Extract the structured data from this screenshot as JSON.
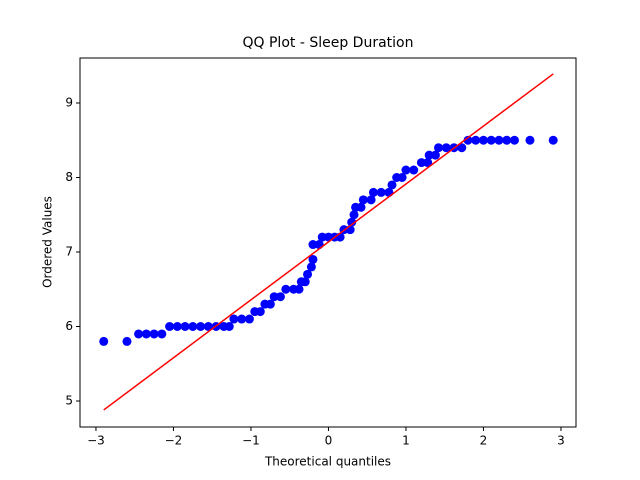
{
  "chart_data": {
    "type": "scatter",
    "title": "QQ Plot - Sleep Duration",
    "x_label": "Theoretical quantiles",
    "y_label": "Ordered Values",
    "xlim": [
      -3.206,
      3.194
    ],
    "ylim": [
      4.651,
      9.604
    ],
    "xticks": [
      {
        "value": -3,
        "label": "−3"
      },
      {
        "value": -2,
        "label": "−2"
      },
      {
        "value": -1,
        "label": "−1"
      },
      0,
      1,
      2,
      3
    ],
    "yticks": [
      5,
      6,
      7,
      8,
      9
    ],
    "grid": false,
    "series": [
      {
        "type": "scatter",
        "color": "#0000ff",
        "x": [
          -2.9,
          -2.6,
          -2.45,
          -2.35,
          -2.25,
          -2.15,
          -2.05,
          -1.95,
          -1.85,
          -1.75,
          -1.65,
          -1.55,
          -1.45,
          -1.35,
          -1.28,
          -1.22,
          -1.12,
          -1.02,
          -0.95,
          -0.88,
          -0.82,
          -0.75,
          -0.7,
          -0.62,
          -0.55,
          -0.45,
          -0.38,
          -0.35,
          -0.3,
          -0.27,
          -0.22,
          -0.2,
          -0.2,
          -0.12,
          -0.08,
          0.0,
          0.08,
          0.15,
          0.2,
          0.28,
          0.3,
          0.33,
          0.35,
          0.42,
          0.45,
          0.55,
          0.58,
          0.68,
          0.78,
          0.82,
          0.88,
          0.95,
          1.0,
          1.1,
          1.2,
          1.28,
          1.3,
          1.38,
          1.42,
          1.52,
          1.62,
          1.72,
          1.8,
          1.9,
          2.0,
          2.1,
          2.2,
          2.3,
          2.4,
          2.6,
          2.9
        ],
        "values": [
          5.8,
          5.8,
          5.9,
          5.9,
          5.9,
          5.9,
          6.0,
          6.0,
          6.0,
          6.0,
          6.0,
          6.0,
          6.0,
          6.0,
          6.0,
          6.1,
          6.1,
          6.1,
          6.2,
          6.2,
          6.3,
          6.3,
          6.4,
          6.4,
          6.5,
          6.5,
          6.5,
          6.6,
          6.6,
          6.7,
          6.8,
          6.9,
          7.1,
          7.1,
          7.2,
          7.2,
          7.2,
          7.2,
          7.3,
          7.3,
          7.4,
          7.5,
          7.6,
          7.6,
          7.7,
          7.7,
          7.8,
          7.8,
          7.8,
          7.9,
          8.0,
          8.0,
          8.1,
          8.1,
          8.2,
          8.2,
          8.3,
          8.3,
          8.4,
          8.4,
          8.4,
          8.4,
          8.5,
          8.5,
          8.5,
          8.5,
          8.5,
          8.5,
          8.5,
          8.5,
          8.5
        ]
      },
      {
        "type": "line",
        "color": "#ff0000",
        "x": [
          -2.9,
          2.9
        ],
        "values": [
          4.88,
          9.39
        ]
      }
    ]
  }
}
